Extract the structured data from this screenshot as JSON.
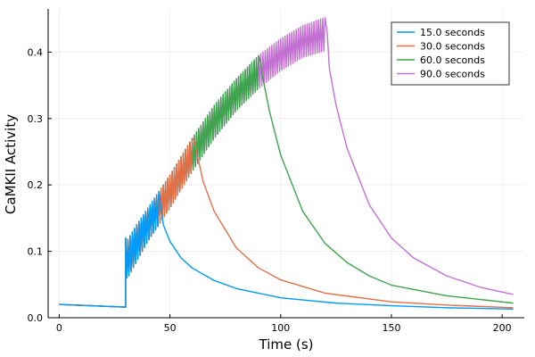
{
  "chart_data": {
    "type": "line",
    "title": "",
    "xlabel": "Time (s)",
    "ylabel": "CaMKII Activity",
    "xlim": [
      -5,
      210
    ],
    "ylim": [
      0,
      0.465
    ],
    "xticks": [
      0,
      50,
      100,
      150,
      200
    ],
    "yticks": [
      0.0,
      0.1,
      0.2,
      0.3,
      0.4
    ],
    "xtick_labels": [
      "0",
      "50",
      "100",
      "150",
      "200"
    ],
    "ytick_labels": [
      "0.0",
      "0.1",
      "0.2",
      "0.3",
      "0.4"
    ],
    "grid": true,
    "legend_position": "top-right",
    "stim_start": 30,
    "baseline": {
      "x": [
        0,
        30
      ],
      "y": [
        0.02,
        0.016
      ]
    },
    "rise": {
      "x": [
        30,
        31,
        35,
        40,
        45,
        50,
        60,
        70,
        80,
        90,
        100,
        110,
        120
      ],
      "upper": [
        0.12,
        0.118,
        0.14,
        0.165,
        0.19,
        0.215,
        0.27,
        0.32,
        0.36,
        0.395,
        0.42,
        0.44,
        0.452
      ],
      "lower": [
        0.06,
        0.06,
        0.085,
        0.115,
        0.14,
        0.165,
        0.22,
        0.27,
        0.312,
        0.345,
        0.372,
        0.392,
        0.402
      ]
    },
    "series": [
      {
        "name": "15.0 seconds",
        "color": "#009AFA",
        "stim_end": 45,
        "decay": {
          "x": [
            46,
            47,
            50,
            55,
            60,
            70,
            80,
            100,
            125,
            150,
            175,
            205
          ],
          "y": [
            0.165,
            0.14,
            0.115,
            0.09,
            0.075,
            0.056,
            0.044,
            0.03,
            0.022,
            0.018,
            0.015,
            0.013
          ]
        }
      },
      {
        "name": "30.0 seconds",
        "color": "#E36F47",
        "stim_end": 60,
        "decay": {
          "x": [
            61,
            62,
            65,
            70,
            80,
            90,
            100,
            120,
            150,
            175,
            205
          ],
          "y": [
            0.268,
            0.25,
            0.205,
            0.16,
            0.105,
            0.075,
            0.057,
            0.037,
            0.024,
            0.019,
            0.015
          ]
        }
      },
      {
        "name": "60.0 seconds",
        "color": "#3EA44E",
        "stim_end": 90,
        "decay": {
          "x": [
            91,
            92,
            95,
            100,
            110,
            120,
            130,
            140,
            150,
            175,
            205
          ],
          "y": [
            0.383,
            0.36,
            0.31,
            0.245,
            0.16,
            0.112,
            0.083,
            0.063,
            0.049,
            0.033,
            0.022
          ]
        }
      },
      {
        "name": "90.0 seconds",
        "color": "#C271D2",
        "stim_end": 120,
        "decay": {
          "x": [
            121,
            122,
            125,
            130,
            140,
            150,
            160,
            175,
            190,
            205
          ],
          "y": [
            0.43,
            0.375,
            0.32,
            0.255,
            0.17,
            0.12,
            0.09,
            0.063,
            0.046,
            0.035
          ]
        }
      }
    ]
  }
}
